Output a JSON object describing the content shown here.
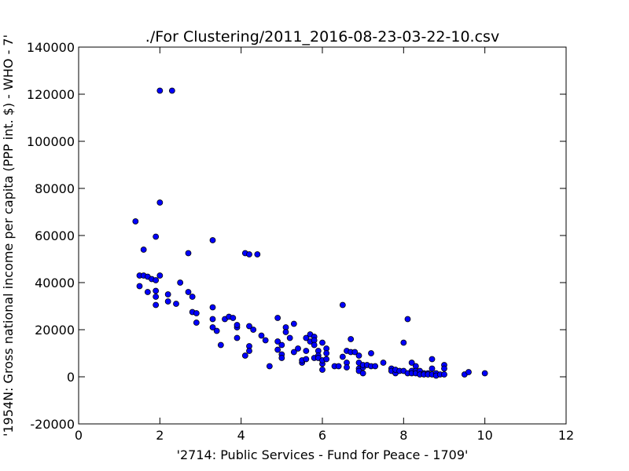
{
  "chart_data": {
    "type": "scatter",
    "title": "./For Clustering/2011_2016-08-23-03-22-10.csv",
    "xlabel": "'2714: Public Services - Fund for Peace - 1709'",
    "ylabel": "'1954N: Gross national income per capita (PPP int. $) - WHO - 7'",
    "xlim": [
      0,
      12
    ],
    "ylim": [
      -20000,
      140000
    ],
    "xticks": [
      0,
      2,
      4,
      6,
      8,
      10,
      12
    ],
    "yticks": [
      -20000,
      0,
      20000,
      40000,
      60000,
      80000,
      100000,
      120000,
      140000
    ],
    "grid": false,
    "colors": {
      "marker_fill": "#0000ff",
      "marker_edge": "#000000",
      "axes": "#000000",
      "background": "#ffffff"
    },
    "series": [
      {
        "x": [
          1.4,
          1.5,
          1.5,
          1.6,
          1.6,
          1.7,
          1.7,
          1.8,
          1.9,
          1.9,
          1.9,
          1.9,
          1.9,
          2.0,
          2.0,
          2.0,
          2.2,
          2.2,
          2.3,
          2.4,
          2.5,
          2.7,
          2.7,
          2.8,
          2.8,
          2.9,
          2.9,
          3.3,
          3.3,
          3.3,
          3.3,
          3.4,
          3.5,
          3.6,
          3.7,
          3.8,
          3.9,
          3.9,
          3.9,
          4.1,
          4.1,
          4.2,
          4.2,
          4.2,
          4.2,
          4.3,
          4.4,
          4.5,
          4.6,
          4.7,
          4.9,
          4.9,
          4.9,
          5.0,
          5.0,
          5.0,
          5.1,
          5.1,
          5.2,
          5.3,
          5.3,
          5.4,
          5.5,
          5.5,
          5.6,
          5.6,
          5.6,
          5.7,
          5.7,
          5.8,
          5.8,
          5.8,
          5.8,
          5.9,
          5.9,
          5.9,
          6.0,
          6.0,
          6.0,
          6.0,
          6.1,
          6.1,
          6.1,
          6.3,
          6.4,
          6.5,
          6.5,
          6.6,
          6.6,
          6.6,
          6.7,
          6.7,
          6.8,
          6.9,
          6.9,
          6.9,
          6.9,
          7.0,
          7.0,
          7.0,
          7.1,
          7.2,
          7.2,
          7.3,
          7.5,
          7.7,
          7.7,
          7.8,
          7.8,
          7.9,
          8.0,
          8.0,
          8.1,
          8.1,
          8.2,
          8.2,
          8.2,
          8.3,
          8.3,
          8.3,
          8.4,
          8.4,
          8.5,
          8.5,
          8.6,
          8.6,
          8.7,
          8.7,
          8.7,
          8.8,
          8.8,
          8.9,
          9.0,
          9.0,
          9.0,
          9.5,
          9.6,
          10.0
        ],
        "y": [
          66000,
          38500,
          43000,
          54000,
          43000,
          42500,
          36000,
          41500,
          59500,
          41000,
          36500,
          34000,
          30500,
          74000,
          43000,
          121500,
          35000,
          32000,
          121500,
          31000,
          40000,
          52500,
          36000,
          34000,
          27500,
          27000,
          23000,
          58000,
          29500,
          24500,
          21000,
          19500,
          13500,
          24500,
          25500,
          25000,
          21000,
          16500,
          22000,
          9000,
          52500,
          13000,
          11000,
          21500,
          52000,
          20000,
          52000,
          17500,
          15500,
          4500,
          25000,
          15000,
          11500,
          13500,
          9500,
          8000,
          21000,
          19000,
          16500,
          22500,
          10500,
          12000,
          6000,
          7000,
          16500,
          11000,
          7500,
          18000,
          15000,
          17000,
          15500,
          13500,
          8000,
          11000,
          9000,
          8000,
          14500,
          5500,
          3000,
          7000,
          12000,
          10000,
          7500,
          4500,
          4500,
          30500,
          8500,
          11000,
          6000,
          4000,
          16000,
          10500,
          10500,
          9000,
          6000,
          3500,
          2500,
          4000,
          1500,
          5000,
          5000,
          10000,
          4500,
          4500,
          6000,
          3500,
          2500,
          1500,
          3000,
          2500,
          14500,
          2500,
          24500,
          1500,
          6000,
          2500,
          1500,
          4500,
          2500,
          1500,
          2500,
          1000,
          1500,
          1000,
          1500,
          1000,
          7500,
          3500,
          1000,
          1500,
          500,
          1000,
          5000,
          3500,
          1000,
          1000,
          2000,
          1500
        ]
      }
    ]
  }
}
